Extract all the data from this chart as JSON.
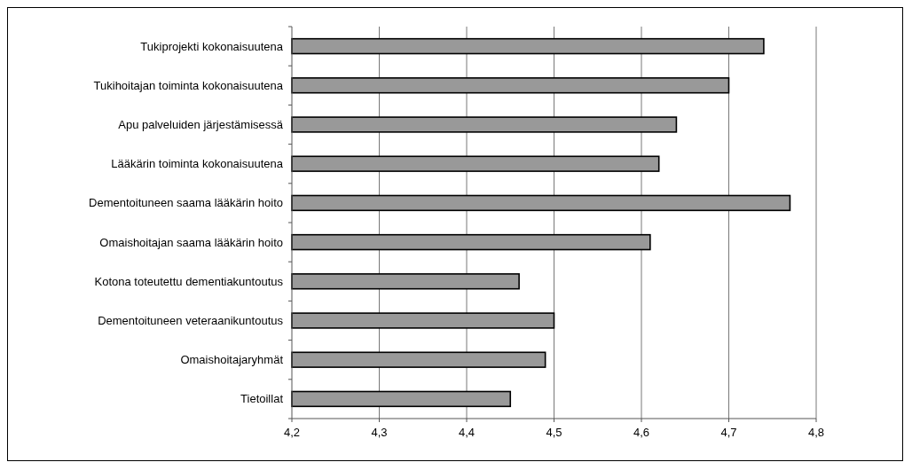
{
  "chart_data": {
    "type": "bar",
    "orientation": "horizontal",
    "categories": [
      "Tukiprojekti kokonaisuutena",
      "Tukihoitajan toiminta kokonaisuutena",
      "Apu palveluiden järjestämisessä",
      "Lääkärin toiminta kokonaisuutena",
      "Dementoituneen saama lääkärin hoito",
      "Omaishoitajan saama lääkärin hoito",
      "Kotona toteutettu dementiakuntoutus",
      "Dementoituneen veteraanikuntoutus",
      "Omaishoitajaryhmät",
      "Tietoillat"
    ],
    "values": [
      4.74,
      4.7,
      4.64,
      4.62,
      4.77,
      4.61,
      4.46,
      4.5,
      4.49,
      4.45
    ],
    "color": "#999999",
    "xlim": [
      4.2,
      4.8
    ],
    "xticks": [
      {
        "value": 4.2,
        "label": "4,2"
      },
      {
        "value": 4.3,
        "label": "4,3"
      },
      {
        "value": 4.4,
        "label": "4,4"
      },
      {
        "value": 4.5,
        "label": "4,5"
      },
      {
        "value": 4.6,
        "label": "4,6"
      },
      {
        "value": 4.7,
        "label": "4,7"
      },
      {
        "value": 4.8,
        "label": "4,8"
      }
    ],
    "grid": "x"
  }
}
